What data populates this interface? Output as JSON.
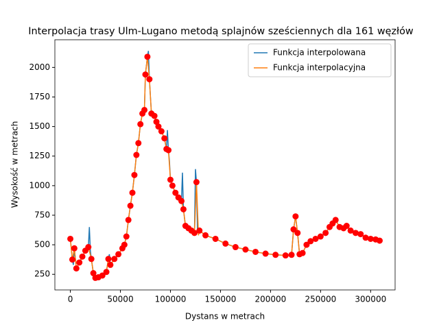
{
  "chart_data": {
    "type": "line",
    "title": "Interpolacja trasy Ulm-Lugano metodą splajnów sześciennych dla 161 węzłów",
    "x_label": "Dystans w metrach",
    "y_label": "Wysokość w metrach",
    "xlim": [
      -15450,
      324450
    ],
    "ylim": [
      118,
      2234
    ],
    "xticks": [
      0,
      50000,
      100000,
      150000,
      200000,
      250000,
      300000
    ],
    "yticks": [
      250,
      500,
      750,
      1000,
      1250,
      1500,
      1750,
      2000
    ],
    "legend": "upper right",
    "series": [
      {
        "name": "Funkcja interpolowana",
        "color": "#1f77b4",
        "x": [
          0,
          2000,
          3000,
          4000,
          6000,
          9000,
          12000,
          15000,
          17000,
          18000,
          19000,
          20000,
          21000,
          23000,
          25000,
          28000,
          32000,
          36000,
          38000,
          39000,
          40000,
          44000,
          48000,
          52000,
          54000,
          56000,
          58000,
          60000,
          62000,
          64000,
          66000,
          68000,
          70000,
          72000,
          74000,
          75000,
          77000,
          78000,
          79000,
          81000,
          84000,
          86000,
          88000,
          91000,
          94000,
          96000,
          97000,
          98000,
          99000,
          100000,
          102000,
          105000,
          108000,
          111000,
          112000,
          113000,
          115000,
          118000,
          121000,
          124000,
          125000,
          126000,
          127000,
          129000,
          135000,
          145000,
          155000,
          165000,
          175000,
          185000,
          195000,
          205000,
          215000,
          221000,
          223000,
          225000,
          227000,
          229000,
          232000,
          236000,
          240000,
          245000,
          250000,
          255000,
          259000,
          262000,
          265000,
          269000,
          273000,
          276000,
          280000,
          285000,
          290000,
          295000,
          300000,
          305000,
          309000
        ],
        "values": [
          550,
          375,
          330,
          470,
          300,
          350,
          400,
          450,
          470,
          480,
          650,
          450,
          380,
          260,
          220,
          225,
          240,
          270,
          380,
          420,
          330,
          380,
          420,
          470,
          500,
          570,
          710,
          830,
          940,
          1090,
          1260,
          1360,
          1520,
          1610,
          1640,
          1940,
          2090,
          2140,
          1900,
          1610,
          1590,
          1540,
          1500,
          1460,
          1400,
          1310,
          1470,
          1300,
          1210,
          1050,
          1000,
          940,
          900,
          870,
          1110,
          800,
          660,
          640,
          620,
          600,
          1140,
          1030,
          620,
          620,
          580,
          550,
          510,
          480,
          460,
          440,
          425,
          415,
          410,
          415,
          630,
          740,
          600,
          420,
          430,
          500,
          530,
          550,
          570,
          600,
          650,
          680,
          710,
          650,
          640,
          660,
          620,
          600,
          590,
          560,
          550,
          545,
          535
        ]
      },
      {
        "name": "Funkcja interpolacyjna",
        "color": "#ff7f0e",
        "x": [
          0,
          2000,
          4000,
          6000,
          9000,
          12000,
          15000,
          18000,
          21000,
          23000,
          25000,
          28000,
          32000,
          36000,
          38000,
          40000,
          44000,
          48000,
          52000,
          54000,
          56000,
          58000,
          60000,
          62000,
          64000,
          66000,
          68000,
          70000,
          72000,
          74000,
          75000,
          77000,
          79000,
          81000,
          84000,
          86000,
          88000,
          91000,
          94000,
          96000,
          98000,
          100000,
          102000,
          105000,
          108000,
          111000,
          113000,
          115000,
          118000,
          121000,
          124000,
          126000,
          128000,
          129000,
          135000,
          145000,
          155000,
          165000,
          175000,
          185000,
          195000,
          205000,
          215000,
          221000,
          223000,
          225000,
          227000,
          229000,
          232000,
          236000,
          240000,
          245000,
          250000,
          255000,
          259000,
          262000,
          265000,
          269000,
          273000,
          276000,
          280000,
          285000,
          290000,
          295000,
          300000,
          305000,
          309000
        ],
        "values": [
          550,
          375,
          470,
          300,
          350,
          400,
          450,
          480,
          380,
          260,
          220,
          225,
          240,
          270,
          380,
          330,
          380,
          420,
          470,
          500,
          570,
          710,
          830,
          940,
          1090,
          1260,
          1360,
          1520,
          1610,
          1640,
          1940,
          2090,
          1900,
          1610,
          1590,
          1540,
          1500,
          1460,
          1400,
          1310,
          1300,
          1050,
          1000,
          940,
          900,
          870,
          800,
          660,
          640,
          620,
          600,
          1030,
          580,
          620,
          580,
          550,
          510,
          480,
          460,
          440,
          425,
          415,
          410,
          415,
          630,
          740,
          600,
          420,
          430,
          500,
          530,
          550,
          570,
          600,
          650,
          680,
          710,
          650,
          640,
          660,
          620,
          600,
          590,
          560,
          550,
          545,
          535
        ]
      }
    ],
    "nodes": {
      "color": "#ff0000",
      "x": [
        0,
        2000,
        4000,
        6000,
        9000,
        12000,
        15000,
        18000,
        21000,
        23000,
        25000,
        28000,
        32000,
        36000,
        38000,
        40000,
        44000,
        48000,
        52000,
        54000,
        56000,
        58000,
        60000,
        62000,
        64000,
        66000,
        68000,
        70000,
        72000,
        74000,
        75000,
        77000,
        79000,
        81000,
        84000,
        86000,
        88000,
        91000,
        94000,
        96000,
        98000,
        100000,
        102000,
        105000,
        108000,
        111000,
        113000,
        115000,
        118000,
        121000,
        124000,
        126000,
        129000,
        135000,
        145000,
        155000,
        165000,
        175000,
        185000,
        195000,
        205000,
        215000,
        221000,
        223000,
        225000,
        227000,
        229000,
        232000,
        236000,
        240000,
        245000,
        250000,
        255000,
        259000,
        262000,
        265000,
        269000,
        273000,
        276000,
        280000,
        285000,
        290000,
        295000,
        300000,
        305000,
        309000
      ],
      "values": [
        550,
        375,
        470,
        300,
        350,
        400,
        450,
        480,
        380,
        260,
        220,
        225,
        240,
        270,
        380,
        330,
        380,
        420,
        470,
        500,
        570,
        710,
        830,
        940,
        1090,
        1260,
        1360,
        1520,
        1610,
        1640,
        1940,
        2090,
        1900,
        1610,
        1590,
        1540,
        1500,
        1460,
        1400,
        1310,
        1300,
        1050,
        1000,
        940,
        900,
        870,
        800,
        660,
        640,
        620,
        600,
        1030,
        620,
        580,
        550,
        510,
        480,
        460,
        440,
        425,
        415,
        410,
        415,
        630,
        740,
        600,
        420,
        430,
        500,
        530,
        550,
        570,
        600,
        650,
        680,
        710,
        650,
        640,
        660,
        620,
        600,
        590,
        560,
        550,
        545,
        535
      ]
    }
  }
}
